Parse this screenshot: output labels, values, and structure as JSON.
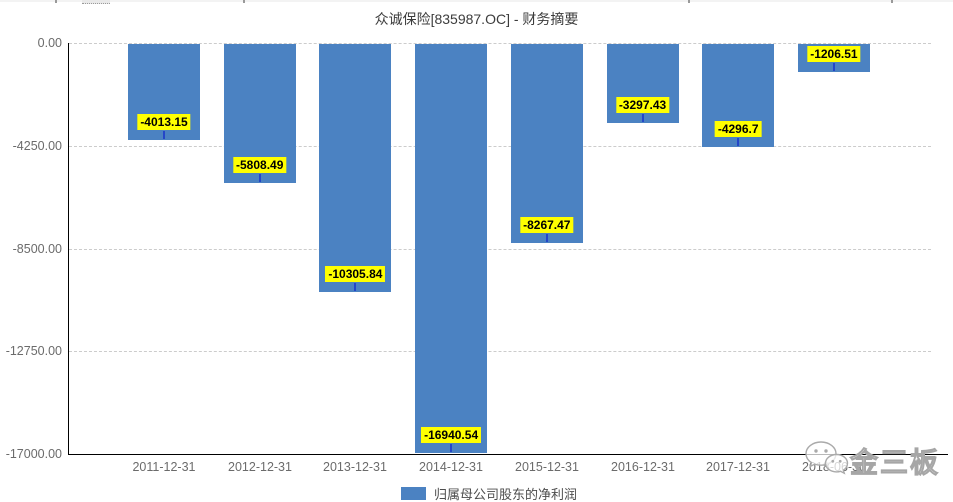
{
  "title": "众诚保险[835987.OC] - 财务摘要",
  "legend": {
    "label": "归属母公司股东的净利润",
    "swatch_color": "#4b82c2"
  },
  "watermark": {
    "brand": "金三板",
    "icon": "wechat-icon"
  },
  "colors": {
    "bar": "#4b82c2",
    "value_label_bg": "#ffff00",
    "value_label_text": "#000000",
    "callout_tick": "#2446c8",
    "grid": "#cccccc",
    "axis": "#000000",
    "axis_text": "#6b6b6b",
    "title_text": "#3c3c3c"
  },
  "chart_data": {
    "type": "bar",
    "title": "众诚保险[835987.OC] - 财务摘要",
    "series_name": "归属母公司股东的净利润",
    "categories": [
      "2011-12-31",
      "2012-12-31",
      "2013-12-31",
      "2014-12-31",
      "2015-12-31",
      "2016-12-31",
      "2017-12-31",
      "2018-06-30"
    ],
    "values": [
      -4013.15,
      -5808.49,
      -10305.84,
      -16940.54,
      -8267.47,
      -3297.43,
      -4296.7,
      -1206.51
    ],
    "bar_labels": [
      "-4013.15",
      "-5808.49",
      "-10305.84",
      "-16940.54",
      "-8267.47",
      "-3297.43",
      "-4296.7",
      "-1206.51"
    ],
    "ylim": [
      -17000,
      0
    ],
    "yticks": [
      0,
      -4250,
      -8500,
      -12750,
      -17000
    ],
    "ytick_labels": [
      "0.00",
      "-4250.00",
      "-8500.00",
      "-12750.00",
      "-17000.00"
    ],
    "grid": "horizontal-dashed",
    "legend_position": "bottom-center",
    "xlabel": "",
    "ylabel": ""
  }
}
